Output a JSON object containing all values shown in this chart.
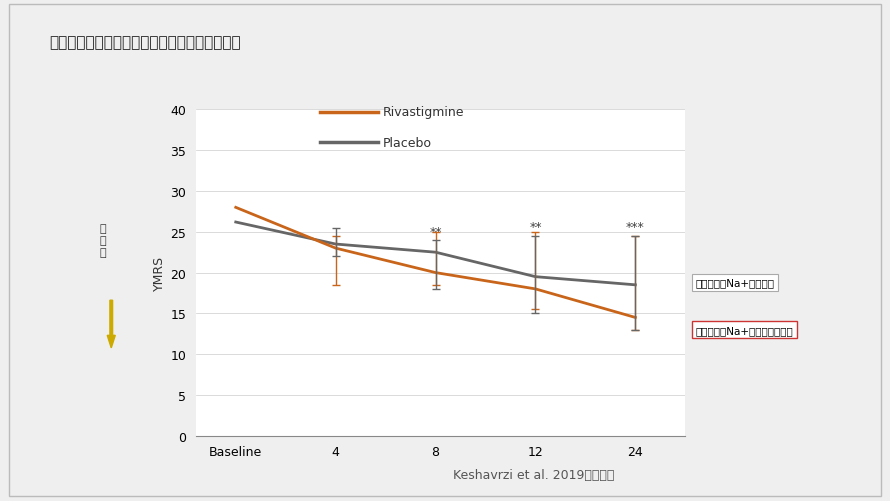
{
  "title": "リバスチグミンの双極性障害躁病相の改善効果",
  "title_fontsize": 11,
  "ylabel": "YMRS",
  "ylabel_fontsize": 9,
  "citation": "Keshavrzi et al. 2019より引用",
  "ylim": [
    0,
    40
  ],
  "yticks": [
    0,
    5,
    10,
    15,
    20,
    25,
    30,
    35,
    40
  ],
  "xtick_labels": [
    "Baseline",
    "4",
    "8",
    "12",
    "24"
  ],
  "xtick_positions": [
    0,
    1,
    2,
    3,
    4
  ],
  "rivastigmine_color": "#C8651B",
  "placebo_color": "#666666",
  "rivastigmine_mean": [
    28.0,
    23.0,
    20.0,
    18.0,
    14.5
  ],
  "rivastigmine_err_low": [
    0,
    4.5,
    1.5,
    2.5,
    1.5
  ],
  "rivastigmine_err_high": [
    0,
    1.5,
    5.0,
    7.0,
    10.0
  ],
  "placebo_mean": [
    26.2,
    23.5,
    22.5,
    19.5,
    18.5
  ],
  "placebo_err_low": [
    0,
    1.5,
    4.5,
    4.5,
    5.5
  ],
  "placebo_err_high": [
    0,
    2.0,
    1.5,
    5.0,
    6.0
  ],
  "significance_labels": [
    "",
    "",
    "**",
    "**",
    "***"
  ],
  "legend_rivastigmine": "Rivastigmine",
  "legend_placebo": "Placebo",
  "annotation_placebo": "バルプロ酸Na+プラセボ",
  "annotation_rivastigmine": "バルプロ酸Na+リバスチグミン",
  "vertical_label": "躁\n症\n状",
  "background_color": "#efefef",
  "plot_bg_color": "#ffffff",
  "linewidth": 2.0,
  "border_color": "#bbbbbb"
}
